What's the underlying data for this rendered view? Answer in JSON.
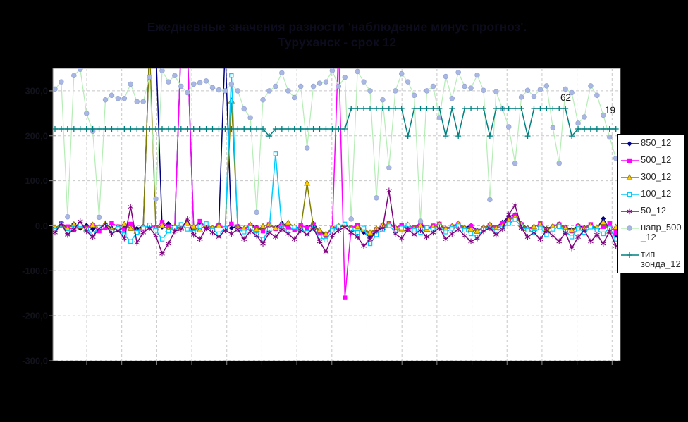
{
  "title": {
    "line1": "Ежедневные значения разности 'наблюдение минус прогноз'.",
    "line2": "Туруханск - срок 12"
  },
  "legend": {
    "items": [
      "850_12",
      "500_12",
      "300_12",
      "100_12",
      "50_12",
      "напр_500_12",
      "тип зонда_12"
    ]
  },
  "chart_data": {
    "type": "line",
    "title": "Ежедневные значения разности 'наблюдение минус прогноз'. Туруханск - срок 12",
    "background": "#000000",
    "plot_background": "#FFFFFF",
    "grid": {
      "color": "#C8C8C8",
      "h_values": [
        300,
        200,
        100,
        0,
        -100,
        -200,
        -300
      ],
      "v_count": 16
    },
    "y_axis": {
      "min": -300,
      "max": 350,
      "major": 100,
      "labels": [
        "300,0",
        "200,0",
        "100,0",
        "0,0",
        "-100,0",
        "-200,0",
        "-300,0"
      ],
      "label_color": "#12121C"
    },
    "x_axis": {
      "points": 90,
      "labels_visible": false
    },
    "annotations": [
      {
        "text": "62",
        "x": 795,
        "y": 143
      },
      {
        "text": "19",
        "x": 858,
        "y": 161
      }
    ],
    "secondary_axis_note": "тип зонда_12 is plotted against a hidden secondary axis; its labelled levels are 62 and 19, dips are missing-type (~4)",
    "series": [
      {
        "name": "850_12",
        "line_color": "#000080",
        "marker": "diamond",
        "marker_fill": "#000080",
        "marker_edge": "#000080",
        "axis": "primary",
        "values": [
          -5,
          2,
          -3,
          4,
          -6,
          1,
          -8,
          -2,
          3,
          -5,
          -10,
          -4,
          2,
          -6,
          -1,
          400,
          400,
          -3,
          5,
          -2,
          400,
          400,
          -4,
          8,
          -2,
          -6,
          3,
          400,
          -5,
          0,
          -7,
          2,
          -3,
          -9,
          1,
          -4,
          6,
          -2,
          -8,
          0,
          -3,
          5,
          -12,
          -20,
          -8,
          -3,
          2,
          -5,
          0,
          -15,
          -25,
          -10,
          -2,
          6,
          -4,
          1,
          -7,
          -3,
          4,
          -6,
          -1,
          3,
          -8,
          -2,
          5,
          -4,
          0,
          -10,
          -5,
          2,
          -3,
          8,
          20,
          25,
          5,
          -5,
          -2,
          3,
          -6,
          -1,
          4,
          -3,
          -8,
          0,
          -4,
          2,
          -6,
          16,
          -10,
          -25
        ]
      },
      {
        "name": "500_12",
        "line_color": "#FF00FF",
        "marker": "square",
        "marker_fill": "#FF00FF",
        "marker_edge": "#FF00FF",
        "axis": "primary",
        "values": [
          -8,
          5,
          -2,
          -10,
          3,
          -5,
          2,
          -12,
          -4,
          6,
          -2,
          -8,
          4,
          -15,
          -6,
          2,
          -4,
          8,
          -2,
          -6,
          400,
          400,
          -5,
          10,
          -3,
          -8,
          2,
          -6,
          4,
          -2,
          -10,
          0,
          -5,
          -12,
          3,
          -7,
          2,
          -4,
          -9,
          1,
          -5,
          3,
          -15,
          -22,
          -6,
          400,
          -160,
          -5,
          2,
          -10,
          -18,
          -8,
          0,
          5,
          -6,
          2,
          -9,
          -3,
          6,
          -5,
          0,
          4,
          -7,
          -2,
          3,
          -8,
          -1,
          -12,
          -6,
          1,
          -4,
          6,
          15,
          22,
          3,
          -8,
          -3,
          5,
          -10,
          -2,
          3,
          -5,
          -12,
          -1,
          -6,
          3,
          -9,
          -2,
          5,
          -15
        ]
      },
      {
        "name": "300_12",
        "line_color": "#808000",
        "marker": "triangle",
        "marker_fill": "#FFCC00",
        "marker_edge": "#8a7000",
        "axis": "primary",
        "values": [
          -4,
          2,
          -6,
          3,
          -1,
          -7,
          2,
          -3,
          5,
          -8,
          -2,
          4,
          -6,
          -12,
          -3,
          400,
          -5,
          1,
          -8,
          -2,
          -4,
          6,
          -2,
          -9,
          3,
          -5,
          0,
          -7,
          278,
          -3,
          -6,
          2,
          -8,
          -1,
          4,
          -5,
          -2,
          7,
          -3,
          -6,
          95,
          -2,
          -10,
          -18,
          -5,
          0,
          3,
          -6,
          -2,
          -8,
          -15,
          -6,
          1,
          4,
          -3,
          -7,
          2,
          -5,
          0,
          -8,
          -2,
          3,
          -6,
          -1,
          5,
          -4,
          -8,
          -12,
          -4,
          2,
          -5,
          0,
          12,
          20,
          4,
          -6,
          -2,
          3,
          -8,
          -1,
          2,
          -5,
          -10,
          -2,
          -6,
          1,
          -4,
          8,
          -12,
          -3
        ]
      },
      {
        "name": "100_12",
        "line_color": "#00CCFF",
        "marker": "open-square",
        "marker_fill": "#FFFFFF",
        "marker_edge": "#00CCFF",
        "axis": "primary",
        "values": [
          -10,
          3,
          -15,
          -5,
          2,
          -8,
          -18,
          -4,
          1,
          -12,
          -6,
          -20,
          -35,
          -15,
          -5,
          2,
          -10,
          -30,
          -12,
          -4,
          3,
          -8,
          -15,
          -2,
          5,
          -10,
          -18,
          -6,
          334,
          -8,
          -14,
          -4,
          -20,
          -30,
          -8,
          160,
          -5,
          -12,
          -3,
          -10,
          -15,
          -6,
          -25,
          -32,
          -10,
          -2,
          4,
          -8,
          -15,
          -5,
          -40,
          -20,
          -8,
          0,
          -12,
          -5,
          2,
          -10,
          -15,
          -4,
          -8,
          -2,
          -14,
          -6,
          0,
          -10,
          -18,
          -25,
          -8,
          -3,
          -12,
          -5,
          5,
          14,
          -2,
          -10,
          -15,
          -5,
          -20,
          -8,
          -2,
          -12,
          -25,
          -6,
          -15,
          -3,
          -10,
          -18,
          -5,
          -30
        ]
      },
      {
        "name": "50_12",
        "line_color": "#800080",
        "marker": "asterisk",
        "marker_fill": "#800080",
        "marker_edge": "#800080",
        "axis": "primary",
        "values": [
          -15,
          5,
          -20,
          -8,
          10,
          -12,
          -25,
          -6,
          3,
          -18,
          -10,
          -28,
          42,
          -38,
          -15,
          -5,
          -22,
          -62,
          -40,
          -12,
          -8,
          15,
          -20,
          -30,
          -5,
          -15,
          -25,
          -10,
          -18,
          -8,
          -30,
          -12,
          -22,
          -40,
          -15,
          -25,
          -8,
          -18,
          -30,
          -10,
          -20,
          -5,
          -35,
          -58,
          -22,
          -10,
          -3,
          -15,
          -25,
          -45,
          -30,
          -12,
          -5,
          78,
          -18,
          -28,
          -8,
          -20,
          -10,
          -25,
          -15,
          -5,
          -30,
          -18,
          -8,
          -22,
          -35,
          -28,
          -12,
          -5,
          -20,
          -8,
          25,
          46,
          -5,
          -25,
          -15,
          -30,
          -10,
          -22,
          -35,
          -15,
          -50,
          -25,
          -10,
          -35,
          -20,
          -40,
          -12,
          -45
        ]
      },
      {
        "name": "напр_500_12",
        "line_color": "#B5EDB5",
        "marker": "circle",
        "marker_fill": "#A9B7E2",
        "marker_edge": "#93a4d4",
        "axis": "primary",
        "values": [
          304,
          320,
          20,
          334,
          348,
          250,
          210,
          19,
          280,
          290,
          283,
          283,
          315,
          276,
          276,
          331,
          60,
          345,
          320,
          334,
          310,
          296,
          315,
          318,
          322,
          307,
          302,
          300,
          315,
          300,
          260,
          240,
          30,
          280,
          300,
          310,
          340,
          300,
          285,
          310,
          173,
          310,
          317,
          320,
          345,
          310,
          330,
          15,
          343,
          320,
          300,
          62,
          280,
          129,
          300,
          338,
          320,
          290,
          10,
          300,
          310,
          240,
          332,
          283,
          341,
          310,
          306,
          335,
          301,
          58,
          298,
          260,
          220,
          139,
          286,
          301,
          288,
          303,
          311,
          218,
          139,
          304,
          296,
          228,
          242,
          311,
          290,
          246,
          197,
          150
        ]
      },
      {
        "name": "тип зонда_12",
        "line_color": "#008080",
        "marker": "plus",
        "marker_fill": "#008080",
        "marker_edge": "#008080",
        "axis": "sonde",
        "values": [
          19,
          19,
          19,
          19,
          19,
          19,
          19,
          19,
          19,
          19,
          19,
          19,
          19,
          19,
          19,
          19,
          19,
          19,
          19,
          19,
          19,
          19,
          19,
          19,
          19,
          19,
          19,
          19,
          19,
          19,
          19,
          19,
          19,
          19,
          4,
          19,
          19,
          19,
          19,
          19,
          19,
          19,
          19,
          19,
          19,
          19,
          19,
          62,
          62,
          62,
          62,
          62,
          62,
          62,
          62,
          62,
          4,
          62,
          62,
          62,
          62,
          62,
          4,
          62,
          4,
          62,
          62,
          62,
          62,
          4,
          62,
          62,
          62,
          62,
          62,
          4,
          62,
          62,
          62,
          62,
          62,
          62,
          4,
          19,
          19,
          19,
          19,
          19,
          19,
          19
        ]
      }
    ]
  }
}
